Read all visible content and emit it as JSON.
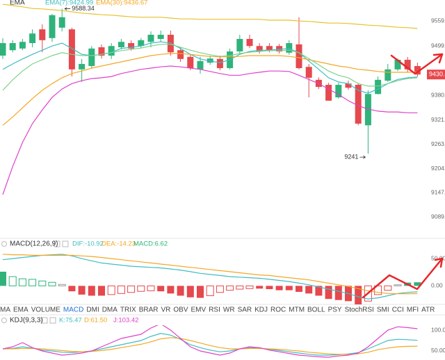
{
  "chart_data": [
    {
      "type": "candlestick",
      "title": "EMA",
      "up_color": "#2fb37b",
      "down_color": "#e5484d",
      "open": [
        9476,
        9489,
        9493,
        9506,
        9539,
        9518,
        9543,
        9539,
        9443,
        9451,
        9496,
        9476,
        9496,
        9506,
        9499,
        9509,
        9516,
        9526,
        9489,
        9473,
        9443,
        9459,
        9468,
        9446,
        9486,
        9516,
        9499,
        9499,
        9499,
        9483,
        9503,
        9449,
        9418,
        9406,
        9376,
        9409,
        9406,
        9309,
        9384,
        9416,
        9443,
        9466,
        9451
      ],
      "high": [
        9518,
        9513,
        9516,
        9539,
        9551,
        9576,
        9588.34,
        9543,
        9468,
        9499,
        9503,
        9506,
        9516,
        9513,
        9518,
        9534,
        9536,
        9536,
        9496,
        9479,
        9473,
        9476,
        9476,
        9493,
        9526,
        9526,
        9506,
        9506,
        9504,
        9513,
        9568,
        9456,
        9424,
        9411,
        9411,
        9416,
        9409,
        9393,
        9426,
        9456,
        9469,
        9473,
        9459
      ],
      "low": [
        9468,
        9484,
        9489,
        9496,
        9484,
        9509,
        9534,
        9426,
        9413,
        9446,
        9469,
        9468,
        9491,
        9488,
        9494,
        9496,
        9509,
        9476,
        9461,
        9441,
        9433,
        9454,
        9441,
        9443,
        9481,
        9494,
        9481,
        9484,
        9481,
        9478,
        9443,
        9376,
        9396,
        9368,
        9373,
        9394,
        9309,
        9241,
        9383,
        9413,
        9439,
        9436,
        9426
      ],
      "close": [
        9506,
        9506,
        9509,
        9529,
        9513,
        9573,
        9568,
        9443,
        9456,
        9493,
        9476,
        9499,
        9509,
        9493,
        9513,
        9526,
        9526,
        9484,
        9468,
        9446,
        9463,
        9469,
        9446,
        9486,
        9516,
        9499,
        9486,
        9489,
        9486,
        9506,
        9446,
        9423,
        9401,
        9368,
        9406,
        9399,
        9313,
        9384,
        9418,
        9443,
        9466,
        9443,
        9430.7
      ],
      "series": [
        {
          "name": "EMA(7):9424.99",
          "color": "#3dbdc4",
          "values": [
            9443,
            9456,
            9468,
            9479,
            9489,
            9499,
            9506,
            9493,
            9479,
            9476,
            9479,
            9484,
            9493,
            9496,
            9499,
            9506,
            9509,
            9506,
            9493,
            9479,
            9468,
            9463,
            9459,
            9466,
            9479,
            9486,
            9489,
            9489,
            9491,
            9493,
            9483,
            9463,
            9443,
            9423,
            9413,
            9409,
            9393,
            9386,
            9396,
            9409,
            9419,
            9423,
            9424.99
          ]
        },
        {
          "name": "EMA(30):9436.67",
          "color": "#f5a623",
          "values": [
            9309,
            9329,
            9351,
            9373,
            9393,
            9409,
            9423,
            9433,
            9439,
            9446,
            9451,
            9456,
            9461,
            9466,
            9471,
            9476,
            9479,
            9481,
            9481,
            9479,
            9476,
            9474,
            9473,
            9473,
            9474,
            9476,
            9476,
            9476,
            9476,
            9474,
            9471,
            9466,
            9461,
            9456,
            9451,
            9448,
            9443,
            9441,
            9438,
            9436,
            9436,
            9436,
            9436.67
          ]
        },
        {
          "color": "#7fd08a",
          "values": [
            9393,
            9418,
            9439,
            9456,
            9466,
            9476,
            9483,
            9479,
            9476,
            9476,
            9479,
            9483,
            9488,
            9491,
            9494,
            9499,
            9503,
            9503,
            9496,
            9489,
            9483,
            9478,
            9474,
            9476,
            9481,
            9484,
            9486,
            9488,
            9488,
            9489,
            9483,
            9469,
            9454,
            9439,
            9429,
            9423,
            9409,
            9403,
            9403,
            9409,
            9416,
            9421,
            9423
          ]
        },
        {
          "color": "#e6c229",
          "values": [
            9599,
            9596,
            9593,
            9589,
            9588,
            9586,
            9584,
            9581,
            9578,
            9576,
            9574,
            9573,
            9571,
            9569,
            9568,
            9568,
            9568,
            9566,
            9564,
            9564,
            9563,
            9563,
            9563,
            9563,
            9563,
            9563,
            9563,
            9561,
            9561,
            9561,
            9559,
            9558,
            9556,
            9554,
            9554,
            9553,
            9551,
            9549,
            9548,
            9546,
            9544,
            9543,
            9541
          ]
        },
        {
          "color": "#e040c8",
          "values": [
            9143,
            9210,
            9268,
            9313,
            9346,
            9376,
            9396,
            9409,
            9416,
            9421,
            9423,
            9426,
            9433,
            9438,
            9443,
            9446,
            9449,
            9451,
            9449,
            9446,
            9443,
            9438,
            9433,
            9429,
            9429,
            9433,
            9436,
            9439,
            9439,
            9438,
            9429,
            9419,
            9409,
            9396,
            9383,
            9368,
            9356,
            9348,
            9343,
            9341,
            9341,
            9339,
            9339
          ]
        }
      ],
      "ylim": [
        9043,
        9609.3
      ],
      "yticks": [
        9559.3,
        9499.3,
        9380.4,
        9321.5,
        {
          "value": 9263,
          "label": "9263.0"
        },
        9204.9,
        9147.1,
        9089.6
      ]
    },
    {
      "type": "bar",
      "title": "MACD(12,26,9)",
      "series": [
        {
          "name": "DIF:-10.92",
          "type": "line",
          "color": "#3dbdc4",
          "values": [
            48,
            50,
            52,
            54,
            56,
            57,
            58,
            55,
            50,
            46,
            42,
            40,
            38,
            36,
            35,
            34,
            33,
            31,
            29,
            26,
            23,
            21,
            19,
            17,
            16,
            15,
            14,
            12,
            10,
            8,
            5,
            2,
            -2,
            -6,
            -10,
            -14,
            -20,
            -24,
            -22,
            -18,
            -14,
            -12,
            -10.92
          ]
        },
        {
          "name": "DEA:-14.23",
          "type": "line",
          "color": "#f5a623",
          "values": [
            58,
            57,
            57,
            56,
            56,
            56,
            56,
            56,
            55,
            54,
            52,
            50,
            48,
            46,
            44,
            42,
            40,
            38,
            36,
            34,
            32,
            30,
            28,
            26,
            24,
            22,
            20,
            19,
            17,
            15,
            13,
            11,
            8,
            5,
            2,
            -1,
            -5,
            -9,
            -12,
            -14,
            -14.5,
            -14.4,
            -14.23
          ]
        },
        {
          "name": "MACD:6.62",
          "type": "bar",
          "color": "#2fb37b",
          "negative_color": "#e5484d",
          "values": [
            26,
            17,
            13,
            12,
            9,
            6.5,
            2.6,
            -10,
            -16,
            -18,
            -18,
            -16,
            -14,
            -12,
            -10,
            -9,
            -10,
            -14,
            -18,
            -21,
            -22,
            -18,
            -12,
            -8,
            -6,
            -5,
            -5,
            -6,
            -8,
            -8,
            -11,
            -14,
            -18,
            -24,
            -26,
            -28,
            -34,
            -28,
            -16,
            -8,
            2,
            6,
            6.62
          ]
        }
      ],
      "ylim": [
        -34,
        68
      ],
      "yticks": [
        {
          "value": 50,
          "label": "50.00"
        },
        {
          "value": 0,
          "label": "0.00"
        }
      ]
    },
    {
      "type": "line",
      "title": "KDJ(9,3,3)",
      "series": [
        {
          "name": "K:75.47",
          "color": "#3dbdc4",
          "values": [
            55,
            56,
            60,
            57,
            52,
            50,
            47,
            46,
            48,
            50,
            55,
            60,
            65,
            70,
            75,
            85,
            92,
            88,
            78,
            65,
            58,
            52,
            48,
            50,
            55,
            58,
            57,
            54,
            51,
            48,
            45,
            42,
            40,
            40,
            41,
            43,
            46,
            55,
            65,
            75,
            78,
            77,
            75.47
          ]
        },
        {
          "name": "D:61.50",
          "color": "#f5a623",
          "values": [
            55,
            55,
            56,
            56,
            55,
            53,
            51,
            49,
            48,
            49,
            51,
            54,
            58,
            62,
            66,
            72,
            79,
            82,
            80,
            75,
            69,
            63,
            58,
            55,
            55,
            56,
            56,
            55,
            54,
            52,
            50,
            47,
            45,
            43,
            42,
            42,
            43,
            47,
            53,
            57,
            60,
            61,
            61.5
          ]
        },
        {
          "name": "J:103.42",
          "color": "#e040c8",
          "values": [
            55,
            60,
            70,
            58,
            50,
            45,
            40,
            42,
            45,
            50,
            60,
            70,
            80,
            85,
            90,
            105,
            115,
            100,
            80,
            60,
            50,
            45,
            40,
            45,
            55,
            60,
            58,
            52,
            48,
            44,
            40,
            38,
            36,
            35,
            38,
            40,
            45,
            60,
            80,
            100,
            108,
            106,
            103.42
          ]
        }
      ],
      "ylim": [
        28.3,
        111.7
      ],
      "yticks": [
        {
          "value": 100,
          "label": "100.00"
        },
        {
          "value": 50,
          "label": "50.00"
        }
      ]
    }
  ],
  "tabs": [
    "MA",
    "EMA",
    "VOLUME",
    "MACD",
    "DMI",
    "DMA",
    "TRIX",
    "BRAR",
    "VR",
    "OBV",
    "EMV",
    "RSI",
    "WR",
    "SAR",
    "KDJ",
    "ROC",
    "MTM",
    "BOLL",
    "PSY",
    "StochRSI",
    "SMI",
    "CCI",
    "MFI",
    "ATR"
  ],
  "active_tab": 3
}
